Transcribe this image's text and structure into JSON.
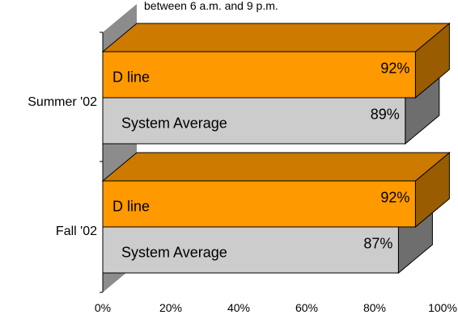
{
  "chart_data": {
    "type": "bar",
    "orientation": "horizontal",
    "subtitle_fragment": "between 6 a.m. and 9 p.m.",
    "categories": [
      "Summer '02",
      "Fall '02"
    ],
    "series": [
      {
        "name": "D line",
        "color": "#FF9900",
        "values": [
          92,
          92
        ]
      },
      {
        "name": "System Average",
        "color": "#CCCCCC",
        "values": [
          89,
          87
        ]
      }
    ],
    "value_labels": [
      [
        "92%",
        "89%"
      ],
      [
        "92%",
        "87%"
      ]
    ],
    "xlim": [
      0,
      100
    ],
    "xticks": [
      "0%",
      "20%",
      "40%",
      "60%",
      "80%",
      "100%"
    ],
    "grid": false,
    "legend": "none"
  }
}
